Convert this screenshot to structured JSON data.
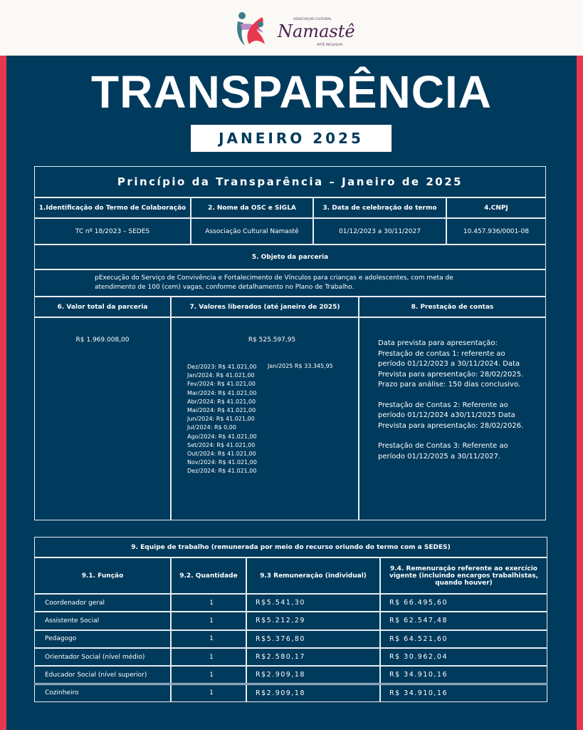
{
  "logo": {
    "small_top": "Associação Cultural",
    "name": "Namastê",
    "small_bottom": "Arte Inclusiva"
  },
  "colors": {
    "navy": "#003a5c",
    "accent_red": "#e8384f",
    "header_bg": "#fbf9f5"
  },
  "title": "TRANSPARÊNCIA",
  "subtitle": "JANEIRO 2025",
  "table1": {
    "title": "Princípio da Transparência – Janeiro de 2025",
    "headers": [
      "1.Identificação do Termo de Colaboração",
      "2. Nome da OSC e SIGLA",
      "3. Data de celebração do termo",
      "4.CNPJ"
    ],
    "values": [
      "TC nº 18/2023 – SEDES",
      "Associação Cultural Namastê",
      "01/12/2023 a 30/11/2027",
      "10.457.936/0001-08"
    ],
    "objeto_header": "5. Objeto da parceria",
    "objeto_text": "pExecução do Serviço de Convivência e Fortalecimento de Vínculos para crianças e adolescentes, com meta de atendimento de 100 (cem) vagas, conforme detalhamento no Plano de Trabalho.",
    "sec6_header": "6. Valor total da parceria",
    "sec6_value": "R$ 1.969.008,00",
    "sec7_header": "7. Valores liberados (até janeiro de 2025)",
    "sec7_total": "R$ 525.597,95",
    "sec7_months": [
      "Dez/2023: R$ 41.021,00",
      "Jan/2024: R$ 41.021,00",
      "Fev/2024: R$ 41.021,00",
      "Mar/2024: R$ 41.021,00",
      "Abr/2024: R$ 41.021,00",
      "Mai/2024: R$ 41.021,00",
      "Jun/2024: R$ 41.021,00",
      "Jul/2024: R$ 0,00",
      "Ago/2024: R$ 41.021,00",
      "Set/2024: R$ 41.021,00",
      "Out/2024: R$ 41.021,00",
      "Nov/2024: R$ 41.021,00",
      "Dez/2024: R$ 41.021,00"
    ],
    "sec7_jan2025": "Jan/2025 R$ 33.345,95",
    "sec8_header": "8. Prestação de contas",
    "sec8_paragraphs": [
      "Data prevista para apresentação: Prestação de contas 1: referente ao período 01/12/2023 a 30/11/2024. Data Prevista para apresentação: 28/02/2025. Prazo para análise: 150 dias conclusivo.",
      "Prestação de Contas 2: Referente ao período 01/12/2024 a30/11/2025 Data Prevista para apresentação: 28/02/2026.",
      "Prestação de Contas 3: Referente ao período 01/12/2025 a 30/11/2027."
    ]
  },
  "table2": {
    "title": "9. Equipe de trabalho (remunerada por meio do recurso oriundo do termo com a SEDES)",
    "headers": [
      "9.1. Função",
      "9.2. Quantidade",
      "9.3 Remuneração (individual)",
      "9.4. Remenuração referente ao exercício vigente (incluindo encargos trabalhistas, quando houver)"
    ],
    "rows": [
      [
        "Coordenador geral",
        "1",
        "R$5.541,30",
        "R$ 66.495,60"
      ],
      [
        "Assistente Social",
        "1",
        "R$5.212,29",
        "R$ 62.547,48"
      ],
      [
        "Pedagogo",
        "1",
        "R$5.376,80",
        "R$ 64.521,60"
      ],
      [
        "Orientador Social (nível médio)",
        "1",
        "R$2.580,17",
        "R$ 30.962,04"
      ],
      [
        "Educador Social (nível superior)",
        "1",
        "R$2.909,18",
        "R$ 34.910,16"
      ],
      [
        "Cozinheiro",
        "1",
        "R$2.909,18",
        "R$ 34.910,16"
      ]
    ]
  }
}
